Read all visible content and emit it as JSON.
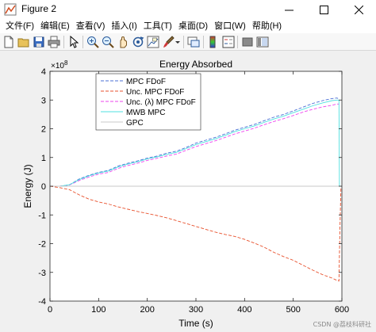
{
  "window": {
    "title": "Figure 2"
  },
  "menu": {
    "items": [
      "文件(F)",
      "编辑(E)",
      "查看(V)",
      "插入(I)",
      "工具(T)",
      "桌面(D)",
      "窗口(W)",
      "帮助(H)"
    ]
  },
  "toolbar": {
    "icons": [
      "new-figure-icon",
      "open-file-icon",
      "save-icon",
      "print-icon",
      "pointer-icon",
      "zoom-in-icon",
      "zoom-out-icon",
      "pan-icon",
      "rotate-3d-icon",
      "data-cursor-icon",
      "brush-icon",
      "link-plot-icon",
      "colorbar-icon",
      "legend-icon",
      "hide-plot-tools-icon",
      "show-plot-tools-icon"
    ]
  },
  "watermark": "CSDN @荔枝科研社",
  "chart_data": {
    "type": "line",
    "title": "Energy Absorbed",
    "xlabel": "Time (s)",
    "ylabel": "Energy (J)",
    "xlim": [
      0,
      600
    ],
    "ylim": [
      -4,
      4
    ],
    "y_exponent": "×10^8",
    "x_ticks": [
      0,
      100,
      200,
      300,
      400,
      500,
      600
    ],
    "y_ticks": [
      -4,
      -3,
      -2,
      -1,
      0,
      1,
      2,
      3,
      4
    ],
    "grid": false,
    "legend_position": "top-left",
    "series": [
      {
        "name": "MPC FDoF",
        "color": "#4a6fd6",
        "style": "dashed",
        "x": [
          0,
          20,
          40,
          60,
          80,
          100,
          120,
          140,
          160,
          180,
          200,
          220,
          240,
          260,
          280,
          300,
          320,
          340,
          360,
          380,
          400,
          420,
          440,
          460,
          480,
          500,
          520,
          540,
          560,
          580,
          590,
          592
        ],
        "y": [
          0,
          0.0,
          0.05,
          0.25,
          0.38,
          0.48,
          0.55,
          0.7,
          0.8,
          0.88,
          0.98,
          1.05,
          1.15,
          1.22,
          1.35,
          1.5,
          1.6,
          1.7,
          1.82,
          1.95,
          2.05,
          2.15,
          2.28,
          2.4,
          2.5,
          2.62,
          2.75,
          2.88,
          2.98,
          3.05,
          3.07,
          3.05
        ]
      },
      {
        "name": "Unc. MPC FDoF",
        "color": "#e8502c",
        "style": "dashed",
        "x": [
          0,
          20,
          40,
          60,
          80,
          100,
          120,
          140,
          160,
          180,
          200,
          220,
          240,
          260,
          280,
          300,
          320,
          340,
          360,
          380,
          400,
          420,
          440,
          460,
          480,
          500,
          520,
          540,
          560,
          580,
          590,
          594,
          596,
          598
        ],
        "y": [
          0,
          -0.05,
          -0.12,
          -0.3,
          -0.45,
          -0.55,
          -0.62,
          -0.72,
          -0.8,
          -0.88,
          -0.95,
          -1.02,
          -1.1,
          -1.2,
          -1.3,
          -1.4,
          -1.5,
          -1.6,
          -1.68,
          -1.75,
          -1.85,
          -1.98,
          -2.12,
          -2.3,
          -2.45,
          -2.58,
          -2.75,
          -2.92,
          -3.08,
          -3.2,
          -3.28,
          -3.3,
          -1.5,
          -0.05
        ]
      },
      {
        "name": "Unc. (λ) MPC FDoF",
        "color": "#ee44ee",
        "style": "dashed",
        "x": [
          0,
          20,
          40,
          60,
          80,
          100,
          120,
          140,
          160,
          180,
          200,
          220,
          240,
          260,
          280,
          300,
          320,
          340,
          360,
          380,
          400,
          420,
          440,
          460,
          480,
          500,
          520,
          540,
          560,
          580,
          590,
          594
        ],
        "y": [
          0,
          0.0,
          0.04,
          0.2,
          0.32,
          0.42,
          0.48,
          0.62,
          0.72,
          0.8,
          0.9,
          0.97,
          1.05,
          1.12,
          1.25,
          1.38,
          1.48,
          1.58,
          1.7,
          1.82,
          1.92,
          2.02,
          2.14,
          2.25,
          2.35,
          2.46,
          2.58,
          2.68,
          2.76,
          2.82,
          2.86,
          2.86
        ]
      },
      {
        "name": "MWB MPC",
        "color": "#4fe0e0",
        "style": "solid",
        "x": [
          0,
          20,
          40,
          60,
          80,
          100,
          120,
          140,
          160,
          180,
          200,
          220,
          240,
          260,
          280,
          300,
          320,
          340,
          360,
          380,
          400,
          420,
          440,
          460,
          480,
          500,
          520,
          540,
          560,
          580,
          590,
          594,
          595
        ],
        "y": [
          0,
          0.0,
          0.05,
          0.23,
          0.36,
          0.46,
          0.53,
          0.67,
          0.77,
          0.85,
          0.95,
          1.02,
          1.11,
          1.18,
          1.31,
          1.45,
          1.55,
          1.65,
          1.77,
          1.9,
          2.0,
          2.1,
          2.22,
          2.34,
          2.44,
          2.56,
          2.68,
          2.8,
          2.9,
          2.98,
          3.0,
          3.0,
          0.0
        ]
      },
      {
        "name": "GPC",
        "color": "#c8c8c8",
        "style": "solid",
        "x": [
          0,
          600
        ],
        "y": [
          0,
          0
        ]
      }
    ]
  }
}
